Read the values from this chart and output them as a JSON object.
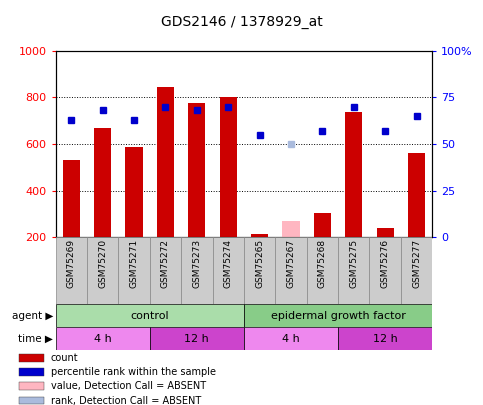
{
  "title": "GDS2146 / 1378929_at",
  "samples": [
    "GSM75269",
    "GSM75270",
    "GSM75271",
    "GSM75272",
    "GSM75273",
    "GSM75274",
    "GSM75265",
    "GSM75267",
    "GSM75268",
    "GSM75275",
    "GSM75276",
    "GSM75277"
  ],
  "count_values": [
    530,
    670,
    585,
    845,
    775,
    800,
    215,
    null,
    305,
    735,
    240,
    560
  ],
  "count_absent": [
    null,
    null,
    null,
    null,
    null,
    null,
    null,
    270,
    null,
    null,
    null,
    null
  ],
  "rank_values": [
    63,
    68,
    63,
    70,
    68,
    70,
    55,
    null,
    57,
    70,
    57,
    65
  ],
  "rank_absent": [
    null,
    null,
    null,
    null,
    null,
    null,
    null,
    50,
    null,
    null,
    null,
    null
  ],
  "ylim_left": [
    200,
    1000
  ],
  "ylim_right": [
    0,
    100
  ],
  "yticks_left": [
    200,
    400,
    600,
    800,
    1000
  ],
  "yticks_right": [
    0,
    25,
    50,
    75,
    100
  ],
  "bar_color": "#cc0000",
  "bar_absent_color": "#ffb6c1",
  "dot_color": "#0000cc",
  "dot_absent_color": "#aabbdd",
  "agent_control_color": "#aaddaa",
  "agent_egf_color": "#88cc88",
  "time_4h_color": "#ee88ee",
  "time_12h_color": "#cc44cc",
  "agent_groups": [
    {
      "label": "control",
      "start": 0,
      "end": 6
    },
    {
      "label": "epidermal growth factor",
      "start": 6,
      "end": 12
    }
  ],
  "time_groups": [
    {
      "label": "4 h",
      "start": 0,
      "end": 3,
      "color": "#ee88ee"
    },
    {
      "label": "12 h",
      "start": 3,
      "end": 6,
      "color": "#cc44cc"
    },
    {
      "label": "4 h",
      "start": 6,
      "end": 9,
      "color": "#ee88ee"
    },
    {
      "label": "12 h",
      "start": 9,
      "end": 12,
      "color": "#cc44cc"
    }
  ],
  "legend_items": [
    {
      "color": "#cc0000",
      "label": "count"
    },
    {
      "color": "#0000cc",
      "label": "percentile rank within the sample"
    },
    {
      "color": "#ffb6c1",
      "label": "value, Detection Call = ABSENT"
    },
    {
      "color": "#aabbdd",
      "label": "rank, Detection Call = ABSENT"
    }
  ],
  "bg_color": "#ffffff",
  "plot_bg_color": "#ffffff"
}
